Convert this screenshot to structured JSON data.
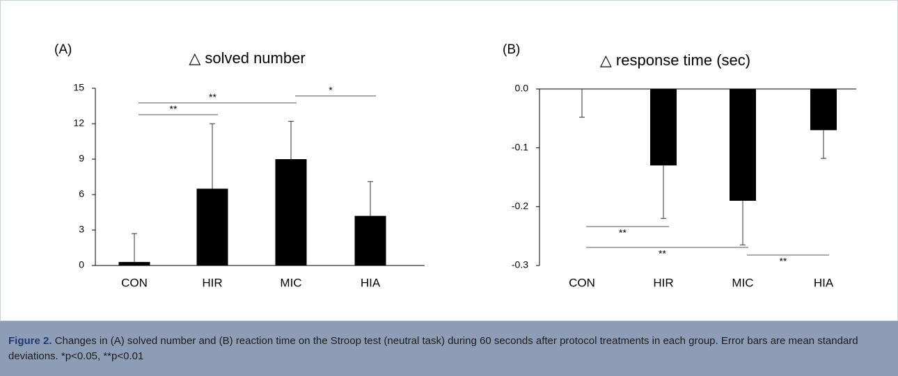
{
  "chart_data": [
    {
      "type": "bar",
      "panel": "(A)",
      "title": "△ solved number",
      "categories": [
        "CON",
        "HIR",
        "MIC",
        "HIA"
      ],
      "values": [
        0.3,
        6.5,
        9.0,
        4.2
      ],
      "errors": [
        2.4,
        5.5,
        3.2,
        2.9
      ],
      "color": "#000000",
      "ylim": [
        0,
        15
      ],
      "yticks": [
        0,
        3,
        6,
        9,
        12,
        15
      ],
      "annotations": [
        {
          "from": "CON",
          "to": "HIR",
          "label": "**"
        },
        {
          "from": "CON",
          "to": "MIC",
          "label": "**"
        },
        {
          "from": "MIC",
          "to": "HIA",
          "label": "*"
        }
      ]
    },
    {
      "type": "bar",
      "panel": "(B)",
      "title": "△ response time (sec)",
      "categories": [
        "CON",
        "HIR",
        "MIC",
        "HIA"
      ],
      "values": [
        0,
        -0.13,
        -0.19,
        -0.07
      ],
      "errors": [
        0.048,
        0.09,
        0.075,
        0.048
      ],
      "color": "#000000",
      "ylim": [
        -0.3,
        0
      ],
      "yticks": [
        {
          "value": 0,
          "label": "0.0"
        },
        -0.1,
        -0.2,
        -0.3
      ],
      "annotations": [
        {
          "from": "CON",
          "to": "HIR",
          "label": "**"
        },
        {
          "from": "CON",
          "to": "MIC",
          "label": "**"
        },
        {
          "from": "MIC",
          "to": "HIA",
          "label": "**"
        }
      ]
    }
  ],
  "figure_caption": {
    "label": "Figure 2.",
    "text": "Changes in (A) solved number and (B) reaction time on the Stroop test (neutral task) during 60 seconds after protocol treatments in each group. Error bars are mean standard deviations. *p<0.05, **p<0.01"
  }
}
